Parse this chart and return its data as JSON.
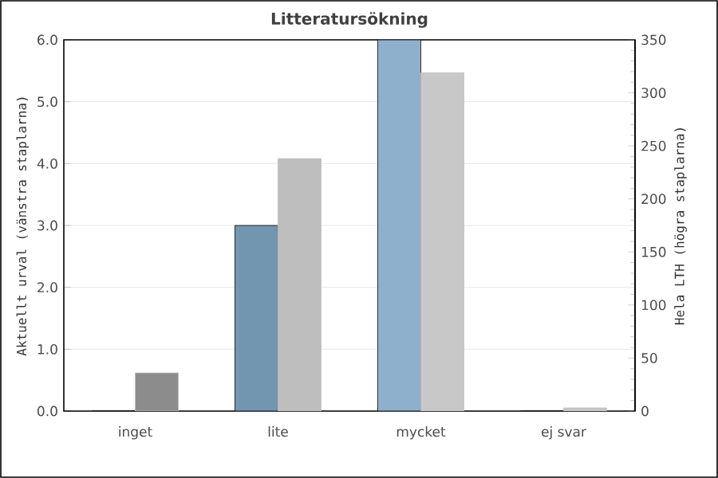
{
  "chart_data": {
    "type": "bar",
    "title": "Litteratursökning",
    "ylabel": "Aktuellt urval (vänstra staplarna)",
    "y2label": "Hela LTH (högra staplarna)",
    "categories": [
      "inget",
      "lite",
      "mycket",
      "ej svar"
    ],
    "series": [
      {
        "values": [
          0,
          3,
          6,
          0
        ],
        "colors": [
          "#7396b0",
          "#7396b0",
          "#8fb0cc",
          "#7396b0"
        ]
      },
      {
        "values": [
          36,
          238,
          319,
          3
        ],
        "colors": [
          "#8c8c8c",
          "#bebebe",
          "#c8c8c8",
          "#c8c8c8"
        ],
        "axis": "y2"
      }
    ],
    "ylim": [
      0,
      6
    ],
    "yticks": [
      {
        "value": 0,
        "label": "0.0"
      },
      {
        "value": 1,
        "label": "1.0"
      },
      {
        "value": 2,
        "label": "2.0"
      },
      {
        "value": 3,
        "label": "3.0"
      },
      {
        "value": 4,
        "label": "4.0"
      },
      {
        "value": 5,
        "label": "5.0"
      },
      {
        "value": 6,
        "label": "6.0"
      }
    ],
    "y2lim": [
      0,
      350
    ],
    "y2ticks": [
      0,
      50,
      100,
      150,
      200,
      250,
      300,
      350
    ],
    "grid": "y"
  }
}
